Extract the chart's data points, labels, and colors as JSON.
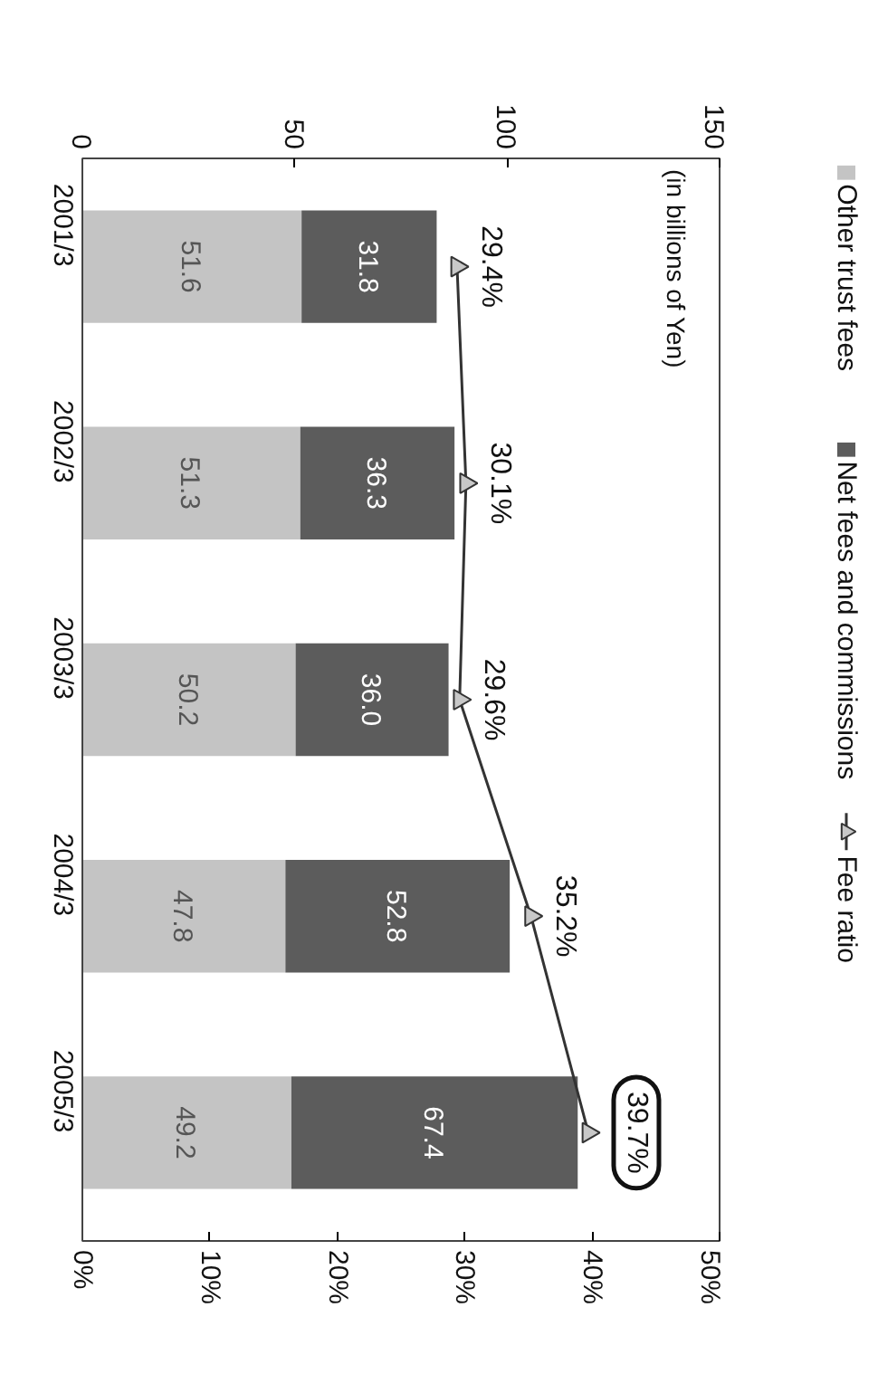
{
  "chart_data": {
    "type": "bar",
    "stacked": true,
    "orientation": "horizontal",
    "annotations": [
      "(in billions of Yen)"
    ],
    "categories": [
      "2001/3",
      "2002/3",
      "2003/3",
      "2004/3",
      "2005/3"
    ],
    "series": [
      {
        "name": "Other trust fees",
        "color": "#c4c4c4",
        "values": [
          51.6,
          51.3,
          50.2,
          47.8,
          49.2
        ],
        "value_labels": [
          "51.6",
          "51.3",
          "50.2",
          "47.8",
          "49.2"
        ]
      },
      {
        "name": "Net fees and commissions",
        "color": "#5c5c5c",
        "values": [
          31.8,
          36.3,
          36.0,
          52.8,
          67.4
        ],
        "value_labels": [
          "31.8",
          "36.3",
          "36.0",
          "52.8",
          "67.4"
        ]
      },
      {
        "name": "Fee ratio",
        "type": "line",
        "axis": "x2",
        "color": "#333333",
        "marker": "triangle",
        "values": [
          29.4,
          30.1,
          29.6,
          35.2,
          39.7
        ],
        "value_labels": [
          "29.4%",
          "30.1%",
          "29.6%",
          "35.2%",
          "39.7%"
        ]
      }
    ],
    "xlim": [
      0,
      150
    ],
    "xticks": [
      0,
      50,
      100,
      150
    ],
    "x2lim": [
      0,
      50
    ],
    "x2ticks": [
      {
        "value": 0,
        "label": "0%"
      },
      {
        "value": 10,
        "label": "10%"
      },
      {
        "value": 20,
        "label": "20%"
      },
      {
        "value": 30,
        "label": "30%"
      },
      {
        "value": 40,
        "label": "40%"
      },
      {
        "value": 50,
        "label": "50%"
      }
    ],
    "legend": "right"
  }
}
